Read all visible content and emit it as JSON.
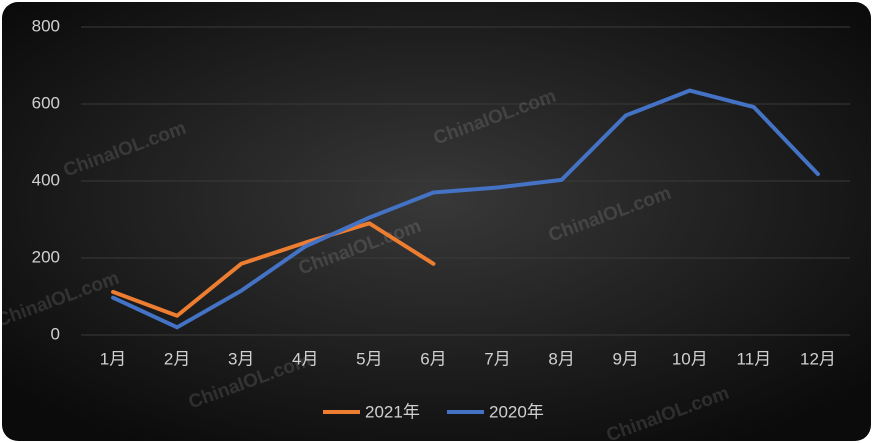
{
  "chart_data": {
    "type": "line",
    "categories": [
      "1月",
      "2月",
      "3月",
      "4月",
      "5月",
      "6月",
      "7月",
      "8月",
      "9月",
      "10月",
      "11月",
      "12月"
    ],
    "series": [
      {
        "name": "2021年",
        "color": "#ed7d31",
        "values": [
          112,
          50,
          185,
          240,
          290,
          185,
          null,
          null,
          null,
          null,
          null,
          null
        ]
      },
      {
        "name": "2020年",
        "color": "#4472c4",
        "values": [
          97,
          20,
          115,
          230,
          305,
          370,
          383,
          403,
          570,
          635,
          592,
          418
        ]
      }
    ],
    "ylim": [
      0,
      800
    ],
    "yticks": [
      0,
      200,
      400,
      600,
      800
    ],
    "grid": true,
    "legend": "bottom",
    "watermark": "ChinaIOL.com"
  }
}
